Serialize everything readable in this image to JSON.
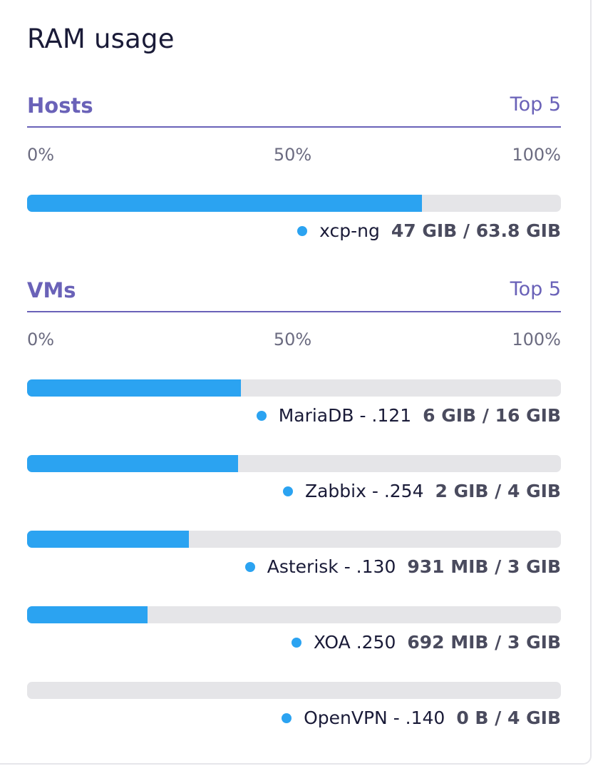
{
  "title": "RAM usage",
  "colors": {
    "accent": "#6a62b8",
    "bar_fill": "#2ba3f1",
    "bar_track": "#e5e5e8",
    "text": "#1a1b38"
  },
  "hosts": {
    "title": "Hosts",
    "link": "Top 5",
    "scale": [
      "0%",
      "50%",
      "100%"
    ],
    "items": [
      {
        "name": "xcp-ng",
        "usage": "47 GIB / 63.8 GIB",
        "ratio": 0.74
      }
    ]
  },
  "vms": {
    "title": "VMs",
    "link": "Top 5",
    "scale": [
      "0%",
      "50%",
      "100%"
    ],
    "items": [
      {
        "name": "MariaDB - .121",
        "usage": "6 GIB / 16 GIB",
        "ratio": 0.4
      },
      {
        "name": "Zabbix - .254",
        "usage": "2 GIB / 4 GIB",
        "ratio": 0.395
      },
      {
        "name": "Asterisk - .130",
        "usage": "931 MIB / 3 GIB",
        "ratio": 0.303
      },
      {
        "name": "XOA .250",
        "usage": "692 MIB / 3 GIB",
        "ratio": 0.225
      },
      {
        "name": "OpenVPN - .140",
        "usage": "0 B / 4 GIB",
        "ratio": 0
      }
    ]
  }
}
